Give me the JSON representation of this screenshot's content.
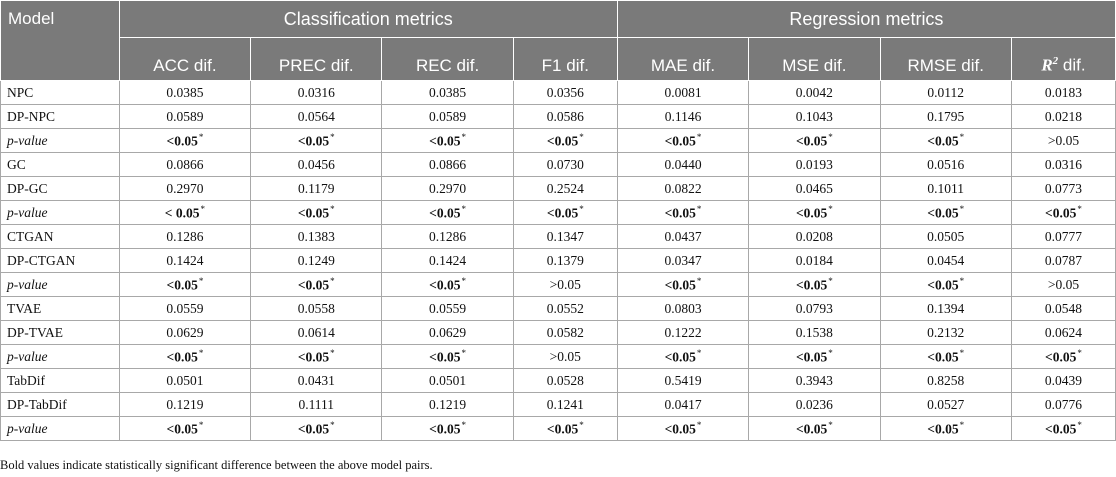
{
  "header": {
    "model": "Model",
    "group_classification": "Classification metrics",
    "group_regression": "Regression metrics",
    "metrics": [
      "ACC dif.",
      "PREC dif.",
      "REC dif.",
      "F1 dif.",
      "MAE dif.",
      "MSE dif.",
      "RMSE dif."
    ],
    "r2_symbol": "R",
    "r2_sup": "2",
    "r2_suffix": " dif."
  },
  "rows": [
    {
      "model": "NPC",
      "pvalue": false,
      "cells": [
        "0.0385",
        "0.0316",
        "0.0385",
        "0.0356",
        "0.0081",
        "0.0042",
        "0.0112",
        "0.0183"
      ]
    },
    {
      "model": "DP-NPC",
      "pvalue": false,
      "cells": [
        "0.0589",
        "0.0564",
        "0.0589",
        "0.0586",
        "0.1146",
        "0.1043",
        "0.1795",
        "0.0218"
      ]
    },
    {
      "model": "p-value",
      "pvalue": true,
      "cells": [
        {
          "op": "<",
          "v": "0.05",
          "sig": true
        },
        {
          "op": "<",
          "v": "0.05",
          "sig": true
        },
        {
          "op": "<",
          "v": "0.05",
          "sig": true
        },
        {
          "op": "<",
          "v": "0.05",
          "sig": true
        },
        {
          "op": "<",
          "v": "0.05",
          "sig": true
        },
        {
          "op": "<",
          "v": "0.05",
          "sig": true
        },
        {
          "op": "<",
          "v": "0.05",
          "sig": true
        },
        {
          "op": ">",
          "v": "0.05",
          "sig": false
        }
      ]
    },
    {
      "model": "GC",
      "pvalue": false,
      "cells": [
        "0.0866",
        "0.0456",
        "0.0866",
        "0.0730",
        "0.0440",
        "0.0193",
        "0.0516",
        "0.0316"
      ]
    },
    {
      "model": "DP-GC",
      "pvalue": false,
      "cells": [
        "0.2970",
        "0.1179",
        "0.2970",
        "0.2524",
        "0.0822",
        "0.0465",
        "0.1011",
        "0.0773"
      ]
    },
    {
      "model": "p-value",
      "pvalue": true,
      "cells": [
        {
          "op": "< ",
          "v": "0.05",
          "sig": true
        },
        {
          "op": "<",
          "v": "0.05",
          "sig": true
        },
        {
          "op": "<",
          "v": "0.05",
          "sig": true
        },
        {
          "op": "<",
          "v": "0.05",
          "sig": true
        },
        {
          "op": "<",
          "v": "0.05",
          "sig": true
        },
        {
          "op": "<",
          "v": "0.05",
          "sig": true
        },
        {
          "op": "<",
          "v": "0.05",
          "sig": true
        },
        {
          "op": "<",
          "v": "0.05",
          "sig": true
        }
      ]
    },
    {
      "model": "CTGAN",
      "pvalue": false,
      "cells": [
        "0.1286",
        "0.1383",
        "0.1286",
        "0.1347",
        "0.0437",
        "0.0208",
        "0.0505",
        "0.0777"
      ]
    },
    {
      "model": "DP-CTGAN",
      "pvalue": false,
      "cells": [
        "0.1424",
        "0.1249",
        "0.1424",
        "0.1379",
        "0.0347",
        "0.0184",
        "0.0454",
        "0.0787"
      ]
    },
    {
      "model": "p-value",
      "pvalue": true,
      "cells": [
        {
          "op": "<",
          "v": "0.05",
          "sig": true
        },
        {
          "op": "<",
          "v": "0.05",
          "sig": true
        },
        {
          "op": "<",
          "v": "0.05",
          "sig": true
        },
        {
          "op": ">",
          "v": "0.05",
          "sig": false
        },
        {
          "op": "<",
          "v": "0.05",
          "sig": true
        },
        {
          "op": "<",
          "v": "0.05",
          "sig": true
        },
        {
          "op": "<",
          "v": "0.05",
          "sig": true
        },
        {
          "op": ">",
          "v": "0.05",
          "sig": false
        }
      ]
    },
    {
      "model": "TVAE",
      "pvalue": false,
      "cells": [
        "0.0559",
        "0.0558",
        "0.0559",
        "0.0552",
        "0.0803",
        "0.0793",
        "0.1394",
        "0.0548"
      ]
    },
    {
      "model": "DP-TVAE",
      "pvalue": false,
      "cells": [
        "0.0629",
        "0.0614",
        "0.0629",
        "0.0582",
        "0.1222",
        "0.1538",
        "0.2132",
        "0.0624"
      ]
    },
    {
      "model": "p-value",
      "pvalue": true,
      "cells": [
        {
          "op": "<",
          "v": "0.05",
          "sig": true
        },
        {
          "op": "<",
          "v": "0.05",
          "sig": true
        },
        {
          "op": "<",
          "v": "0.05",
          "sig": true
        },
        {
          "op": ">",
          "v": "0.05",
          "sig": false
        },
        {
          "op": "<",
          "v": "0.05",
          "sig": true
        },
        {
          "op": "<",
          "v": "0.05",
          "sig": true
        },
        {
          "op": "<",
          "v": "0.05",
          "sig": true
        },
        {
          "op": "<",
          "v": "0.05",
          "sig": true
        }
      ]
    },
    {
      "model": "TabDif",
      "pvalue": false,
      "cells": [
        "0.0501",
        "0.0431",
        "0.0501",
        "0.0528",
        "0.5419",
        "0.3943",
        "0.8258",
        "0.0439"
      ]
    },
    {
      "model": "DP-TabDif",
      "pvalue": false,
      "cells": [
        "0.1219",
        "0.1111",
        "0.1219",
        "0.1241",
        "0.0417",
        "0.0236",
        "0.0527",
        "0.0776"
      ]
    },
    {
      "model": "p-value",
      "pvalue": true,
      "cells": [
        {
          "op": "<",
          "v": "0.05",
          "sig": true
        },
        {
          "op": "<",
          "v": "0.05",
          "sig": true
        },
        {
          "op": "<",
          "v": "0.05",
          "sig": true
        },
        {
          "op": "<",
          "v": "0.05",
          "sig": true
        },
        {
          "op": "<",
          "v": "0.05",
          "sig": true
        },
        {
          "op": "<",
          "v": "0.05",
          "sig": true
        },
        {
          "op": "<",
          "v": "0.05",
          "sig": true
        },
        {
          "op": "<",
          "v": "0.05",
          "sig": true
        }
      ]
    }
  ],
  "significance_marker": "*",
  "footnote": "Bold values indicate statistically significant difference between the above model pairs."
}
